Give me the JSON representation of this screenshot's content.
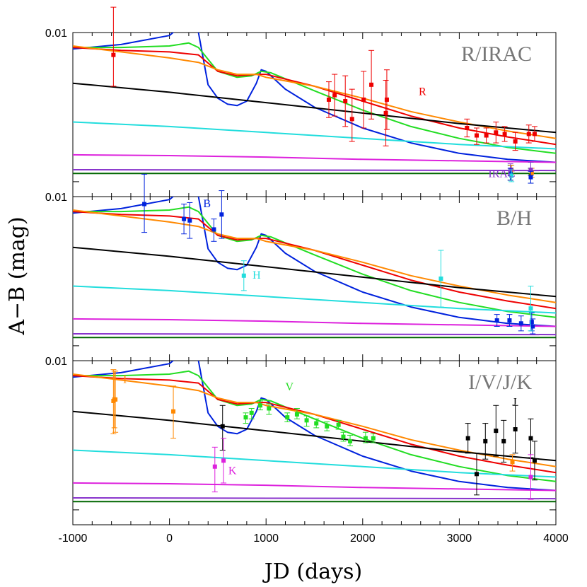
{
  "chart_data": {
    "type": "line",
    "xlabel": "JD (days)",
    "ylabel": "A−B (mag)",
    "xlim": [
      -1000,
      4000
    ],
    "xticks": [
      -1000,
      0,
      1000,
      2000,
      3000,
      4000
    ],
    "xtick_labels": [
      "-1000",
      "0",
      "1000",
      "2000",
      "3000",
      "4000"
    ],
    "ytick_label": "0.01",
    "ylim": [
      -0.1,
      1.0
    ],
    "colors": {
      "black": "#000000",
      "blue": "#0022dd",
      "green": "#22dd22",
      "red": "#ee0000",
      "orange": "#ff8800",
      "cyan": "#22dddd",
      "magenta": "#dd22dd",
      "purple": "#8833cc",
      "darkgreen": "#006600",
      "gray": "#777777"
    },
    "models": [
      {
        "color": "blue",
        "points": [
          [
            -1000,
            0.89
          ],
          [
            -500,
            0.92
          ],
          [
            0,
            0.98
          ],
          [
            150,
            1.06
          ],
          [
            250,
            1.07
          ],
          [
            300,
            1.0
          ],
          [
            400,
            0.65
          ],
          [
            500,
            0.56
          ],
          [
            600,
            0.52
          ],
          [
            700,
            0.51
          ],
          [
            800,
            0.54
          ],
          [
            900,
            0.66
          ],
          [
            950,
            0.75
          ],
          [
            1000,
            0.74
          ],
          [
            1200,
            0.62
          ],
          [
            1500,
            0.5
          ],
          [
            2000,
            0.36
          ],
          [
            2500,
            0.26
          ],
          [
            3000,
            0.19
          ],
          [
            3500,
            0.15
          ],
          [
            4000,
            0.13
          ]
        ]
      },
      {
        "color": "green",
        "points": [
          [
            -1000,
            0.9
          ],
          [
            -500,
            0.9
          ],
          [
            0,
            0.91
          ],
          [
            200,
            0.93
          ],
          [
            300,
            0.9
          ],
          [
            500,
            0.74
          ],
          [
            700,
            0.7
          ],
          [
            850,
            0.71
          ],
          [
            950,
            0.74
          ],
          [
            1050,
            0.73
          ],
          [
            1500,
            0.61
          ],
          [
            2000,
            0.48
          ],
          [
            2500,
            0.37
          ],
          [
            3000,
            0.29
          ],
          [
            3500,
            0.23
          ],
          [
            4000,
            0.19
          ]
        ]
      },
      {
        "color": "red",
        "points": [
          [
            -1000,
            0.9
          ],
          [
            -500,
            0.88
          ],
          [
            0,
            0.87
          ],
          [
            300,
            0.85
          ],
          [
            500,
            0.74
          ],
          [
            700,
            0.71
          ],
          [
            900,
            0.72
          ],
          [
            1000,
            0.72
          ],
          [
            1500,
            0.64
          ],
          [
            2000,
            0.54
          ],
          [
            2500,
            0.44
          ],
          [
            3000,
            0.36
          ],
          [
            3500,
            0.3
          ],
          [
            4000,
            0.25
          ]
        ]
      },
      {
        "color": "orange",
        "points": [
          [
            -1000,
            0.91
          ],
          [
            -500,
            0.87
          ],
          [
            0,
            0.83
          ],
          [
            300,
            0.8
          ],
          [
            500,
            0.75
          ],
          [
            700,
            0.72
          ],
          [
            900,
            0.72
          ],
          [
            1000,
            0.7
          ],
          [
            1500,
            0.64
          ],
          [
            2000,
            0.56
          ],
          [
            2500,
            0.47
          ],
          [
            3000,
            0.4
          ],
          [
            3500,
            0.34
          ],
          [
            4000,
            0.29
          ]
        ]
      },
      {
        "color": "black",
        "points": [
          [
            -1000,
            0.66
          ],
          [
            0,
            0.6
          ],
          [
            1000,
            0.53
          ],
          [
            2000,
            0.46
          ],
          [
            3000,
            0.39
          ],
          [
            4000,
            0.33
          ]
        ]
      },
      {
        "color": "cyan",
        "points": [
          [
            -1000,
            0.4
          ],
          [
            0,
            0.37
          ],
          [
            1000,
            0.33
          ],
          [
            2000,
            0.29
          ],
          [
            3000,
            0.25
          ],
          [
            4000,
            0.22
          ]
        ]
      },
      {
        "color": "magenta",
        "points": [
          [
            -1000,
            0.18
          ],
          [
            0,
            0.175
          ],
          [
            1000,
            0.165
          ],
          [
            2000,
            0.15
          ],
          [
            3000,
            0.14
          ],
          [
            4000,
            0.13
          ]
        ]
      },
      {
        "color": "purple",
        "points": [
          [
            -1000,
            0.08
          ],
          [
            4000,
            0.075
          ]
        ]
      },
      {
        "color": "darkgreen",
        "points": [
          [
            -1000,
            0.055
          ],
          [
            4000,
            0.055
          ]
        ]
      }
    ],
    "panels": [
      {
        "label": "R/IRAC",
        "band_labels": [
          {
            "text": "R",
            "x": 2580,
            "y": 0.58,
            "color": "red"
          },
          {
            "text": "IRAC",
            "x": 3300,
            "y": 0.03,
            "color": "purple"
          }
        ],
        "series": [
          {
            "color": "red",
            "points": [
              [
                -580,
                0.85,
                1.17,
                0.64
              ],
              [
                1650,
                0.55,
                0.67,
                0.43
              ],
              [
                1710,
                0.58,
                0.72,
                0.44
              ],
              [
                1820,
                0.54,
                0.71,
                0.37
              ],
              [
                1890,
                0.42,
                0.62,
                0.27
              ],
              [
                2010,
                0.55,
                0.74,
                0.36
              ],
              [
                2090,
                0.65,
                0.88,
                0.42
              ],
              [
                2240,
                0.46,
                0.68,
                0.24
              ],
              [
                2250,
                0.55,
                0.75,
                0.35
              ],
              [
                3080,
                0.36,
                0.42,
                0.3
              ],
              [
                3180,
                0.31,
                0.36,
                0.25
              ],
              [
                3280,
                0.31,
                0.36,
                0.26
              ],
              [
                3380,
                0.33,
                0.4,
                0.26
              ],
              [
                3470,
                0.32,
                0.37,
                0.27
              ],
              [
                3580,
                0.27,
                0.33,
                0.21
              ],
              [
                3720,
                0.32,
                0.38,
                0.26
              ],
              [
                3780,
                0.32,
                0.37,
                0.27
              ]
            ]
          },
          {
            "color": "darkgreen",
            "points": [
              [
                3530,
                0.06,
                0.11,
                0.01
              ],
              [
                3740,
                0.04,
                0.09,
                -0.01
              ]
            ]
          },
          {
            "color": "orange",
            "points": [
              [
                3540,
                0.08,
                0.11,
                0.05
              ],
              [
                3750,
                0.06,
                0.09,
                0.03
              ]
            ]
          },
          {
            "color": "purple",
            "points": [
              [
                3530,
                0.08,
                0.12,
                0.04
              ],
              [
                3740,
                0.08,
                0.13,
                0.04
              ]
            ]
          },
          {
            "color": "blue",
            "points": [
              [
                3530,
                0.05,
                0.09,
                0.01
              ],
              [
                3740,
                0.03,
                0.07,
                -0.01
              ]
            ]
          },
          {
            "color": "cyan",
            "points": [
              [
                3540,
                0.04,
                0.08,
                0.0
              ]
            ]
          }
        ]
      },
      {
        "label": "B/H",
        "band_labels": [
          {
            "text": "B",
            "x": 350,
            "y": 0.93,
            "color": "blue"
          },
          {
            "text": "H",
            "x": 860,
            "y": 0.45,
            "color": "cyan"
          }
        ],
        "series": [
          {
            "color": "blue",
            "points": [
              [
                -260,
                0.95,
                1.15,
                0.76
              ],
              [
                150,
                0.85,
                0.95,
                0.75
              ],
              [
                210,
                0.84,
                0.96,
                0.72
              ],
              [
                460,
                0.78,
                0.85,
                0.7
              ],
              [
                540,
                0.88,
                1.04,
                0.72
              ],
              [
                3390,
                0.17,
                0.21,
                0.13
              ],
              [
                3520,
                0.17,
                0.21,
                0.13
              ],
              [
                3640,
                0.15,
                0.2,
                0.1
              ],
              [
                3750,
                0.16,
                0.22,
                0.1
              ],
              [
                3760,
                0.13,
                0.18,
                0.08
              ]
            ]
          },
          {
            "color": "cyan",
            "points": [
              [
                770,
                0.47,
                0.57,
                0.37
              ],
              [
                2810,
                0.45,
                0.64,
                0.26
              ],
              [
                3740,
                0.25,
                0.4,
                0.1
              ]
            ]
          }
        ]
      },
      {
        "label": "I/V/J/K",
        "band_labels": [
          {
            "text": "I",
            "x": -480,
            "y": 0.85,
            "color": "orange"
          },
          {
            "text": "V",
            "x": 1200,
            "y": 0.8,
            "color": "green"
          },
          {
            "text": "J",
            "x": 3550,
            "y": 0.7,
            "color": "black"
          },
          {
            "text": "K",
            "x": 610,
            "y": 0.24,
            "color": "magenta"
          }
        ],
        "series": [
          {
            "color": "orange",
            "points": [
              [
                -580,
                0.73,
                0.94,
                0.51
              ],
              [
                -570,
                0.74,
                0.93,
                0.55
              ],
              [
                -560,
                0.74,
                0.93,
                0.52
              ],
              [
                40,
                0.66,
                0.83,
                0.48
              ],
              [
                3550,
                0.32,
                0.37,
                0.26
              ]
            ]
          },
          {
            "color": "green",
            "points": [
              [
                790,
                0.62,
                0.65,
                0.58
              ],
              [
                850,
                0.65,
                0.68,
                0.61
              ],
              [
                940,
                0.7,
                0.73,
                0.67
              ],
              [
                1030,
                0.68,
                0.71,
                0.64
              ],
              [
                1220,
                0.62,
                0.65,
                0.59
              ],
              [
                1320,
                0.64,
                0.68,
                0.61
              ],
              [
                1420,
                0.6,
                0.63,
                0.56
              ],
              [
                1520,
                0.58,
                0.61,
                0.55
              ],
              [
                1630,
                0.56,
                0.59,
                0.53
              ],
              [
                1750,
                0.57,
                0.6,
                0.54
              ],
              [
                1800,
                0.49,
                0.52,
                0.46
              ],
              [
                1870,
                0.46,
                0.5,
                0.43
              ],
              [
                2030,
                0.48,
                0.52,
                0.45
              ],
              [
                2110,
                0.48,
                0.51,
                0.45
              ]
            ]
          },
          {
            "color": "black",
            "points": [
              [
                550,
                0.56,
                0.7,
                0.4
              ],
              [
                3090,
                0.48,
                0.58,
                0.38
              ],
              [
                3180,
                0.24,
                0.38,
                0.1
              ],
              [
                3270,
                0.46,
                0.58,
                0.34
              ],
              [
                3380,
                0.53,
                0.7,
                0.36
              ],
              [
                3460,
                0.46,
                0.6,
                0.32
              ],
              [
                3580,
                0.54,
                0.7,
                0.38
              ],
              [
                3740,
                0.48,
                0.61,
                0.35
              ],
              [
                3780,
                0.33,
                0.46,
                0.2
              ]
            ]
          },
          {
            "color": "magenta",
            "points": [
              [
                470,
                0.29,
                0.42,
                0.12
              ],
              [
                560,
                0.33,
                0.48,
                0.18
              ],
              [
                3740,
                0.22,
                0.37,
                0.07
              ]
            ]
          }
        ]
      }
    ]
  }
}
